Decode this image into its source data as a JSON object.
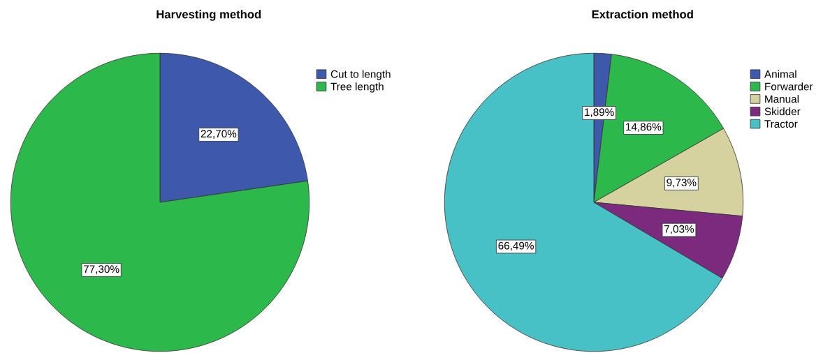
{
  "chart_data": [
    {
      "type": "pie",
      "title": "Harvesting method",
      "categories": [
        "Cut to length",
        "Tree length"
      ],
      "values": [
        22.7,
        77.3
      ],
      "colors": [
        "#3e58ac",
        "#2db84b"
      ],
      "value_labels": [
        "22,70%",
        "77,30%"
      ],
      "legend": "top right"
    },
    {
      "type": "pie",
      "title": "Extraction method",
      "categories": [
        "Animal",
        "Forwarder",
        "Manual",
        "Skidder",
        "Tractor"
      ],
      "values": [
        1.89,
        14.86,
        9.73,
        7.03,
        66.49
      ],
      "colors": [
        "#3e58ac",
        "#2db84b",
        "#d6d29f",
        "#7b2a7e",
        "#48c1c6"
      ],
      "value_labels": [
        "1,89%",
        "14,86%",
        "9,73%",
        "7,03%",
        "66,49%"
      ],
      "legend": "top right"
    }
  ]
}
